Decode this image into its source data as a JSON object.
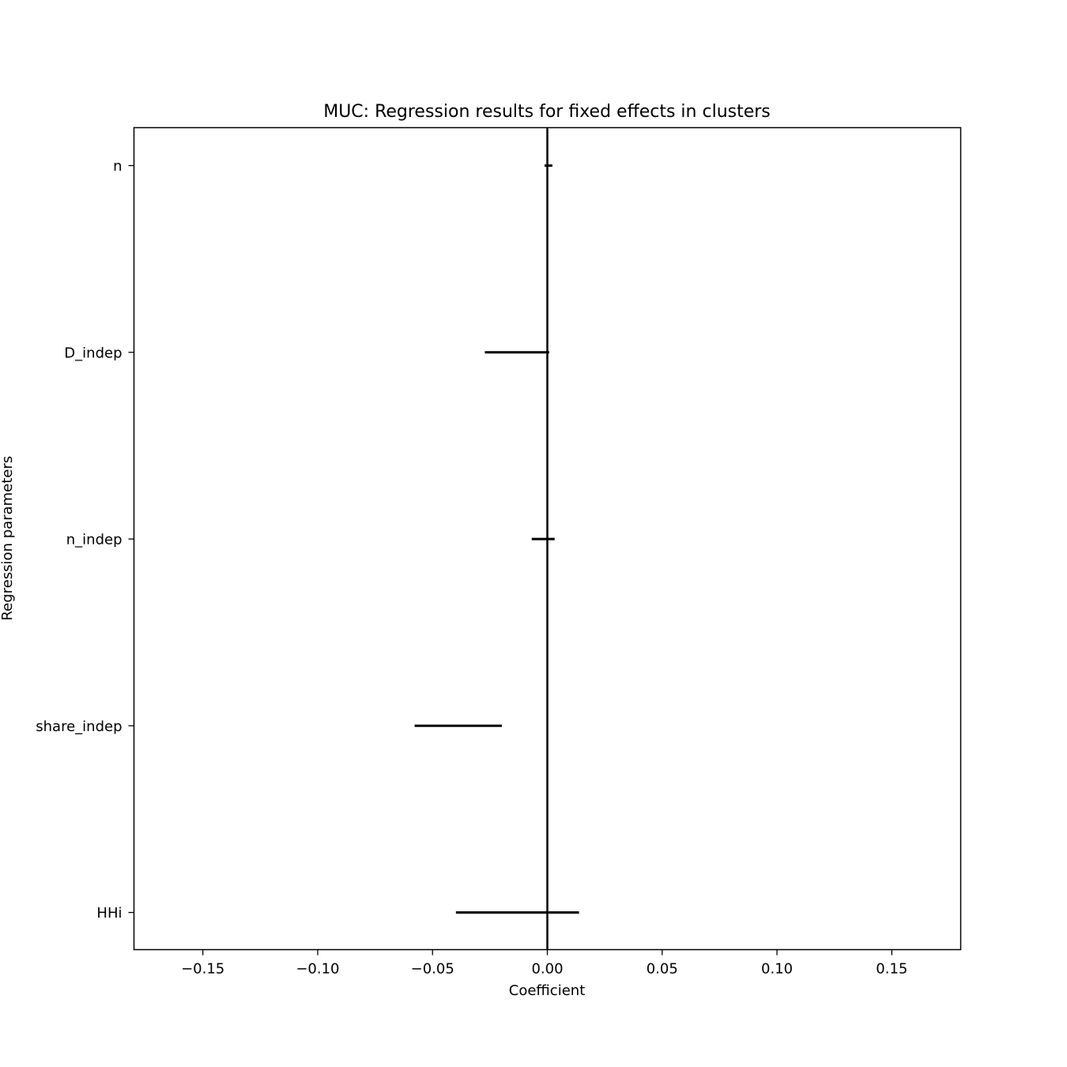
{
  "chart_data": {
    "type": "interval",
    "title": "MUC: Regression results for fixed effects in clusters",
    "xlabel": "Coefficient",
    "ylabel": "Regression parameters",
    "xlim": [
      -0.18,
      0.18
    ],
    "xticks": [
      -0.15,
      -0.1,
      -0.05,
      0.0,
      0.05,
      0.1,
      0.15
    ],
    "xtick_labels": [
      "−0.15",
      "−0.10",
      "−0.05",
      "0.00",
      "0.05",
      "0.10",
      "0.15"
    ],
    "grid": false,
    "reference_line_x": 0.0,
    "line_color": "#000000",
    "parameters": [
      {
        "name": "n",
        "low": -0.0012,
        "high": 0.0022
      },
      {
        "name": "D_indep",
        "low": -0.0272,
        "high": 0.0008
      },
      {
        "name": "n_indep",
        "low": -0.0068,
        "high": 0.0032
      },
      {
        "name": "share_indep",
        "low": -0.0578,
        "high": -0.0198
      },
      {
        "name": "HHi",
        "low": -0.0398,
        "high": 0.0138
      }
    ]
  }
}
